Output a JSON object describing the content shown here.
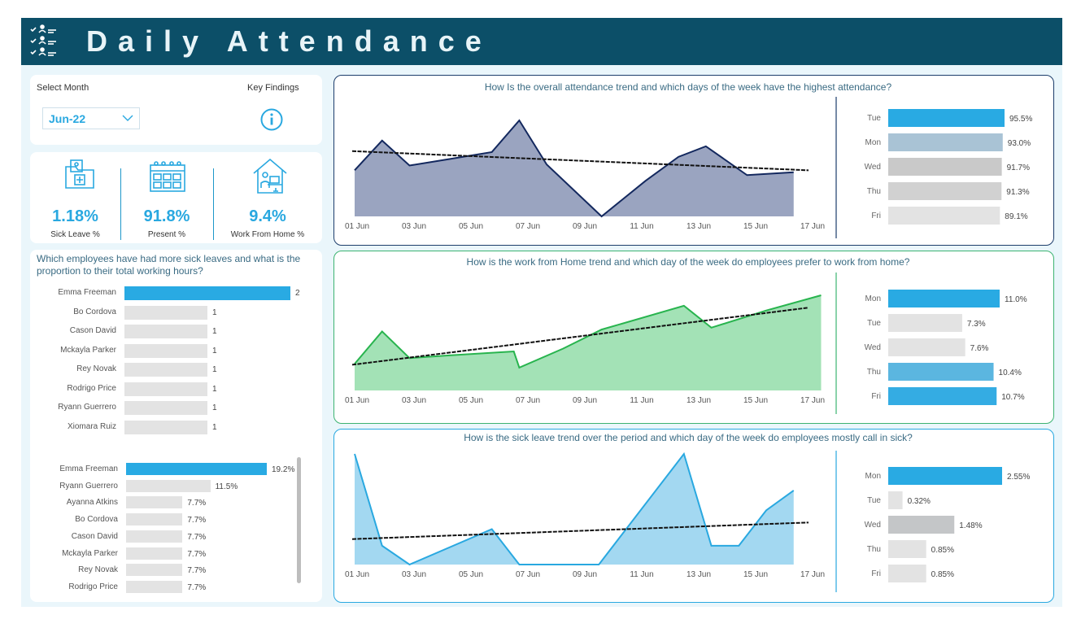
{
  "header": {
    "title": "Daily Attendance",
    "logo_icon": "checklist-people-icon"
  },
  "filter": {
    "label": "Select Month",
    "selected": "Jun-22",
    "key_findings_label": "Key Findings"
  },
  "kpis": [
    {
      "icon": "medical-folder-icon",
      "value": "1.18%",
      "label": "Sick Leave %"
    },
    {
      "icon": "calendar-icon",
      "value": "91.8%",
      "label": "Present %"
    },
    {
      "icon": "home-office-icon",
      "value": "9.4%",
      "label": "Work From Home %"
    }
  ],
  "sick_panel": {
    "question": "Which employees  have had more  sick leaves and what is the proportion to their total working hours?",
    "counts": {
      "names": [
        "Emma Freeman",
        "Bo Cordova",
        "Cason David",
        "Mckayla Parker",
        "Rey Novak",
        "Rodrigo Price",
        "Ryann Guerrero",
        "Xiomara Ruiz"
      ],
      "values": [
        2,
        1,
        1,
        1,
        1,
        1,
        1,
        1
      ],
      "labels": [
        "2",
        "1",
        "1",
        "1",
        "1",
        "1",
        "1",
        "1"
      ]
    },
    "percent": {
      "names": [
        "Emma Freeman",
        "Ryann Guerrero",
        "Ayanna Atkins",
        "Bo Cordova",
        "Cason David",
        "Mckayla Parker",
        "Rey Novak",
        "Rodrigo Price"
      ],
      "values": [
        19.2,
        11.5,
        7.7,
        7.7,
        7.7,
        7.7,
        7.7,
        7.7
      ],
      "labels": [
        "19.2%",
        "11.5%",
        "7.7%",
        "7.7%",
        "7.7%",
        "7.7%",
        "7.7%",
        "7.7%"
      ]
    }
  },
  "charts": {
    "attendance": {
      "title": "How Is the overall attendance trend and which days of the week have the highest attendance?",
      "x_ticks": [
        "01 Jun",
        "03 Jun",
        "05 Jun",
        "07 Jun",
        "09 Jun",
        "11 Jun",
        "13 Jun",
        "15 Jun",
        "17 Jun"
      ],
      "series_norm": [
        0.48,
        0.79,
        0.53,
        0.59,
        0.67,
        1.0,
        0.54,
        0.0,
        0.37,
        0.62,
        0.73,
        0.43,
        0.46
      ],
      "x_pos": [
        0,
        1,
        2,
        3.3,
        5,
        6,
        7,
        9,
        10.6,
        11.8,
        12.8,
        14.3,
        16
      ],
      "trend_norm": [
        0.68,
        0.48
      ],
      "weekday": {
        "days": [
          "Tue",
          "Mon",
          "Wed",
          "Thu",
          "Fri"
        ],
        "values": [
          95.5,
          93.0,
          91.7,
          91.3,
          89.1
        ],
        "labels": [
          "95.5%",
          "93.0%",
          "91.7%",
          "91.3%",
          "89.1%"
        ]
      }
    },
    "wfh": {
      "title": "How is the work from Home trend and which day of the week do employees prefer to work from home?",
      "x_ticks": [
        "01 Jun",
        "03 Jun",
        "05 Jun",
        "07 Jun",
        "09 Jun",
        "11 Jun",
        "13 Jun",
        "15 Jun",
        "17 Jun"
      ],
      "series_norm": [
        0.28,
        0.62,
        0.34,
        0.37,
        0.41,
        0.24,
        0.44,
        0.64,
        0.89,
        0.66,
        0.84,
        1.0
      ],
      "x_pos": [
        0,
        1,
        2,
        3.5,
        5.8,
        6,
        7.6,
        9,
        12,
        13,
        15,
        17
      ],
      "trend_norm": [
        0.27,
        0.87
      ],
      "weekday": {
        "days": [
          "Mon",
          "Tue",
          "Wed",
          "Thu",
          "Fri"
        ],
        "values": [
          11.0,
          7.3,
          7.6,
          10.4,
          10.7
        ],
        "labels": [
          "11.0%",
          "7.3%",
          "7.6%",
          "10.4%",
          "10.7%"
        ]
      }
    },
    "sick": {
      "title": "How is the sick leave trend over the period and which day of the week do employees mostly call in sick?",
      "x_ticks": [
        "01 Jun",
        "03 Jun",
        "05 Jun",
        "07 Jun",
        "09 Jun",
        "11 Jun",
        "13 Jun",
        "15 Jun",
        "17 Jun"
      ],
      "series_norm": [
        1.0,
        0.17,
        0.0,
        0.32,
        0.0,
        0.0,
        1.0,
        0.17,
        0.17,
        0.49,
        0.67
      ],
      "x_pos": [
        0,
        1,
        2,
        5,
        6,
        8.9,
        12,
        13,
        14,
        15,
        16
      ],
      "trend_norm": [
        0.23,
        0.38
      ],
      "weekday": {
        "days": [
          "Mon",
          "Tue",
          "Wed",
          "Thu",
          "Fri"
        ],
        "values": [
          2.55,
          0.32,
          1.48,
          0.85,
          0.85
        ],
        "labels": [
          "2.55%",
          "0.32%",
          "1.48%",
          "0.85%",
          "0.85%"
        ]
      }
    }
  }
}
